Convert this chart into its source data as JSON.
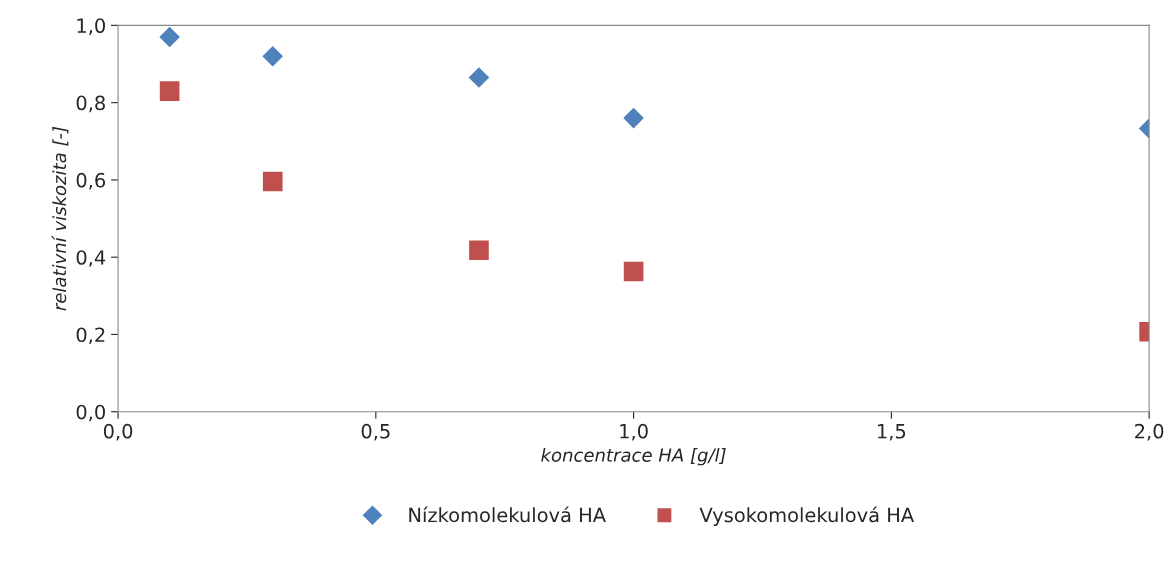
{
  "chart_data": {
    "type": "scatter",
    "xlabel": "koncentrace HA [g/l]",
    "ylabel": "relativní viskozita [-]",
    "x": [
      0.1,
      0.3,
      0.7,
      1.0,
      2.0
    ],
    "series": [
      {
        "name": "Nízkomolekulová HA",
        "color": "#4f81bd",
        "marker": "diamond",
        "values": [
          0.97,
          0.92,
          0.865,
          0.76,
          0.733
        ]
      },
      {
        "name": "Vysokomolekulová HA",
        "color": "#c0504d",
        "marker": "square",
        "values": [
          0.83,
          0.596,
          0.418,
          0.363,
          0.207
        ]
      }
    ],
    "xlim": [
      0,
      2
    ],
    "ylim": [
      0,
      1
    ],
    "xticks": [
      {
        "value": 0,
        "label": "0,0"
      },
      {
        "value": 0.5,
        "label": "0,5"
      },
      {
        "value": 1,
        "label": "1,0"
      },
      {
        "value": 1.5,
        "label": "1,5"
      },
      {
        "value": 2,
        "label": "2,0"
      }
    ],
    "yticks": [
      {
        "value": 0,
        "label": "0,0"
      },
      {
        "value": 0.2,
        "label": "0,2"
      },
      {
        "value": 0.4,
        "label": "0,4"
      },
      {
        "value": 0.6,
        "label": "0,6"
      },
      {
        "value": 0.8,
        "label": "0,8"
      },
      {
        "value": 1,
        "label": "1,0"
      }
    ],
    "legend": "bottom",
    "grid": false
  }
}
